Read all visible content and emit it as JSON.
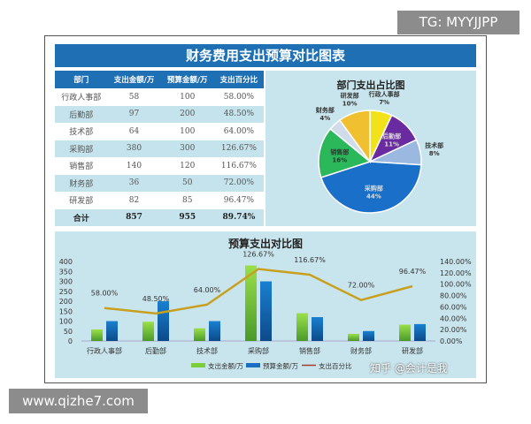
{
  "overlay": {
    "tg": "TG: MYYJJPP",
    "site": "www.qizhe7.com",
    "watermark": "知乎 @会计是我"
  },
  "title": "财务费用支出预算对比图表",
  "table": {
    "headers": [
      "部门",
      "支出金额/万",
      "预算金额/万",
      "支出百分比"
    ],
    "rows": [
      [
        "行政人事部",
        "58",
        "100",
        "58.00%"
      ],
      [
        "后勤部",
        "97",
        "200",
        "48.50%"
      ],
      [
        "技术部",
        "64",
        "100",
        "64.00%"
      ],
      [
        "采购部",
        "380",
        "300",
        "126.67%"
      ],
      [
        "销售部",
        "140",
        "120",
        "116.67%"
      ],
      [
        "财务部",
        "36",
        "50",
        "72.00%"
      ],
      [
        "研发部",
        "82",
        "85",
        "96.47%"
      ]
    ],
    "total": [
      "合计",
      "857",
      "955",
      "89.74%"
    ]
  },
  "colors": {
    "header": "#1f6fb4",
    "panel": "#c8e4ec",
    "expense": "#7ccf3c",
    "budget": "#1a6fc0",
    "line": "#c8a020"
  },
  "chart_data": [
    {
      "type": "pie",
      "title": "部门支出占比图",
      "slices": [
        {
          "label": "行政人事部",
          "value": 7,
          "color": "#f2e21a"
        },
        {
          "label": "后勤部",
          "value": 11,
          "color": "#6a2aa0"
        },
        {
          "label": "技术部",
          "value": 8,
          "color": "#9ab8e0"
        },
        {
          "label": "采购部",
          "value": 44,
          "color": "#1a6fc8"
        },
        {
          "label": "销售部",
          "value": 16,
          "color": "#2ab85a"
        },
        {
          "label": "财务部",
          "value": 4,
          "color": "#d0dcea"
        },
        {
          "label": "研发部",
          "value": 10,
          "color": "#f0c030"
        }
      ]
    },
    {
      "type": "bar",
      "title": "预算支出对比图",
      "categories": [
        "行政人事部",
        "后勤部",
        "技术部",
        "采购部",
        "销售部",
        "财务部",
        "研发部"
      ],
      "series": [
        {
          "name": "支出金额/万",
          "values": [
            58,
            97,
            64,
            380,
            140,
            36,
            82
          ],
          "axis": "left"
        },
        {
          "name": "预算金额/万",
          "values": [
            100,
            200,
            100,
            300,
            120,
            50,
            85
          ],
          "axis": "left"
        },
        {
          "name": "支出百分比",
          "type": "line",
          "values": [
            58.0,
            48.5,
            64.0,
            126.67,
            116.67,
            72.0,
            96.47
          ],
          "labels": [
            "58.00%",
            "48.50%",
            "64.00%",
            "126.67%",
            "116.67%",
            "72.00%",
            "96.47%"
          ],
          "axis": "right"
        }
      ],
      "ylim": [
        0,
        400
      ],
      "yticks": [
        "0",
        "50",
        "100",
        "150",
        "200",
        "250",
        "300",
        "350",
        "400"
      ],
      "y2lim": [
        0,
        140
      ],
      "y2ticks": [
        "0.00%",
        "20.00%",
        "40.00%",
        "60.00%",
        "80.00%",
        "100.00%",
        "120.00%",
        "140.00%"
      ],
      "legend": "bottom"
    }
  ]
}
